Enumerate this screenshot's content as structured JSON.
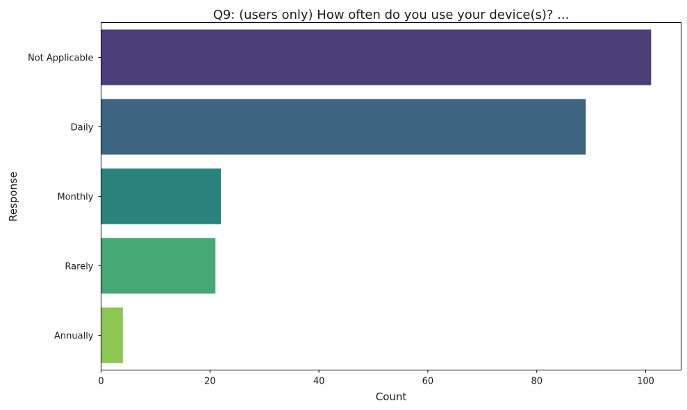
{
  "chart_data": {
    "type": "bar",
    "orientation": "horizontal",
    "title": "Q9: (users only) How often do you use your device(s)? ...",
    "xlabel": "Count",
    "ylabel": "Response",
    "categories": [
      "Not Applicable",
      "Daily",
      "Monthly",
      "Rarely",
      "Annually"
    ],
    "values": [
      101,
      89,
      22,
      21,
      4
    ],
    "colors": [
      "#4b3f7a",
      "#3d6582",
      "#2b827d",
      "#45a773",
      "#8dc653"
    ],
    "xlim": [
      0,
      106.5
    ],
    "xticks": [
      0,
      20,
      40,
      60,
      80,
      100
    ],
    "grid": false,
    "legend": "none"
  }
}
